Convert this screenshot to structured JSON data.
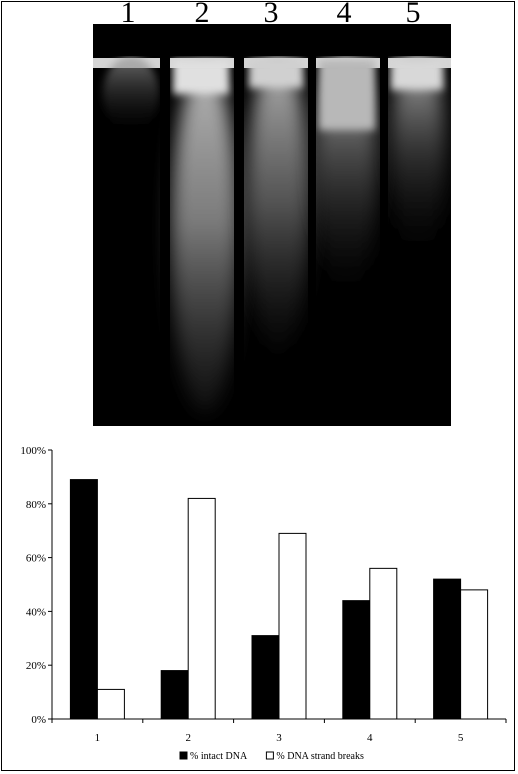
{
  "gel": {
    "lane_labels": [
      "1",
      "2",
      "3",
      "4",
      "5"
    ]
  },
  "chart_data": {
    "type": "bar",
    "categories": [
      "1",
      "2",
      "3",
      "4",
      "5"
    ],
    "series": [
      {
        "name": "% intact DNA",
        "values": [
          89,
          18,
          31,
          44,
          52
        ],
        "color": "#000000"
      },
      {
        "name": "% DNA strand breaks",
        "values": [
          11,
          82,
          69,
          56,
          48
        ],
        "color": "#ffffff"
      }
    ],
    "yticks": [
      "0%",
      "20%",
      "40%",
      "60%",
      "80%",
      "100%"
    ],
    "ylim": [
      0,
      100
    ],
    "grid": false,
    "legend": "bottom"
  }
}
